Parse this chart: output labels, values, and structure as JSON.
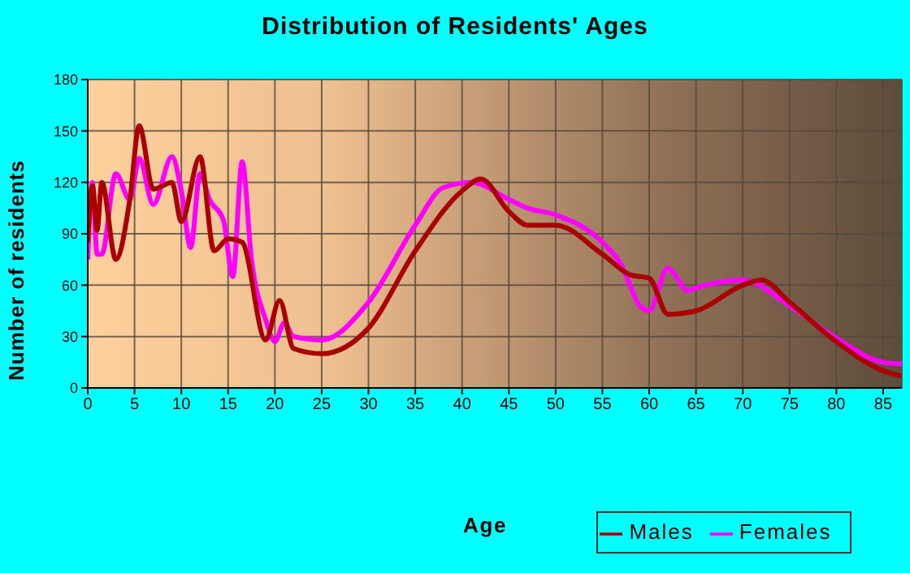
{
  "chart_data": {
    "type": "line",
    "title": "Distribution of Residents' Ages",
    "xlabel": "Age",
    "ylabel": "Number of residents",
    "xlim": [
      0,
      87
    ],
    "xticks": [
      0,
      5,
      10,
      15,
      20,
      25,
      30,
      35,
      40,
      45,
      50,
      55,
      60,
      65,
      70,
      75,
      80,
      85
    ],
    "ylim": [
      0,
      180
    ],
    "yticks": [
      0,
      30,
      60,
      90,
      120,
      150,
      180
    ],
    "grid": true,
    "legend": "bottom right",
    "marker": "none",
    "line_style": "solid",
    "series": [
      {
        "name": "Males",
        "color": "#aa0000",
        "x": [
          0,
          0.5,
          1,
          1.5,
          3,
          4.5,
          5.5,
          7,
          9,
          10,
          12,
          13.5,
          15,
          16.5,
          19,
          20.5,
          22,
          25,
          30,
          35,
          40,
          42,
          45,
          47,
          50,
          55,
          58,
          60,
          62,
          65,
          70,
          72,
          75,
          80,
          85,
          87
        ],
        "values": [
          85,
          118,
          92,
          120,
          75,
          110,
          153,
          116,
          120,
          97,
          135,
          80,
          87,
          85,
          28,
          51,
          23,
          20,
          35,
          80,
          115,
          122,
          103,
          95,
          95,
          78,
          66,
          64,
          43,
          45,
          60,
          63,
          50,
          27,
          10,
          7
        ]
      },
      {
        "name": "Females",
        "color": "#ff00ff",
        "x": [
          0,
          0.5,
          1,
          1.5,
          3,
          4.5,
          5.5,
          7,
          9,
          10,
          11,
          12,
          13,
          14.5,
          15.5,
          16.5,
          17.5,
          19,
          20,
          21,
          22,
          25,
          30,
          35,
          38,
          41,
          45,
          47,
          50,
          55,
          57,
          59,
          60,
          62,
          63,
          64,
          66,
          70,
          75,
          80,
          85,
          87
        ],
        "values": [
          75,
          120,
          78,
          78,
          125,
          110,
          134,
          107,
          135,
          115,
          82,
          125,
          110,
          98,
          65,
          132,
          75,
          40,
          27,
          38,
          30,
          28,
          50,
          95,
          117,
          120,
          110,
          105,
          101,
          85,
          72,
          48,
          45,
          70,
          64,
          57,
          60,
          63,
          48,
          29,
          15,
          14
        ]
      }
    ]
  }
}
